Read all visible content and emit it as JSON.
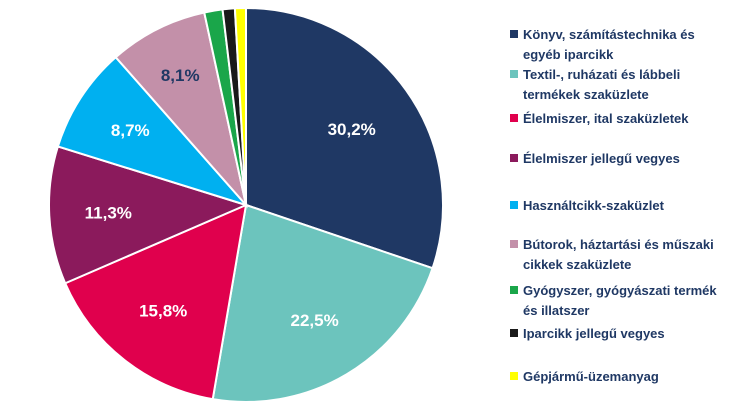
{
  "chart_data": {
    "type": "pie",
    "title": "",
    "series": [
      {
        "name": "Könyv, számítástechnika és egyéb iparcikk",
        "value": 30.2,
        "label": "30,2%",
        "color": "#1f3864",
        "legend_lines": [
          "Könyv, számítástechnika és",
          "egyéb iparcikk"
        ]
      },
      {
        "name": "Textil-, ruházati és lábbeli termékek szaküzlete",
        "value": 22.5,
        "label": "22,5%",
        "color": "#6cc4bd",
        "legend_lines": [
          "Textil-, ruházati és lábbeli",
          "termékek szaküzlete"
        ]
      },
      {
        "name": "Élelmiszer, ital szaküzletek",
        "value": 15.8,
        "label": "15,8%",
        "color": "#e0004d",
        "legend_lines": [
          "Élelmiszer, ital szaküzletek"
        ]
      },
      {
        "name": "Élelmiszer jellegű vegyes",
        "value": 11.3,
        "label": "11,3%",
        "color": "#8b1a5c",
        "legend_lines": [
          "Élelmiszer jellegű vegyes"
        ]
      },
      {
        "name": "Használtcikk-szaküzlet",
        "value": 8.7,
        "label": "8,7%",
        "color": "#00b0f0",
        "legend_lines": [
          "Használtcikk-szaküzlet"
        ]
      },
      {
        "name": "Bútorok, háztartási és műszaki cikkek szaküzlete",
        "value": 8.1,
        "label": "8,1%",
        "color": "#c390a9",
        "legend_lines": [
          "Bútorok, háztartási és műszaki",
          "cikkek szaküzlete"
        ]
      },
      {
        "name": "Gyógyszer, gyógyászati termék és illatszer",
        "value": 1.5,
        "label": "",
        "color": "#1aa64a",
        "legend_lines": [
          "Gyógyszer, gyógyászati termék",
          "és illatszer"
        ]
      },
      {
        "name": "Iparcikk jellegű vegyes",
        "value": 1.0,
        "label": "",
        "color": "#1a1a1a",
        "legend_lines": [
          "Iparcikk jellegű vegyes"
        ]
      },
      {
        "name": "Gépjármű-üzemanyag",
        "value": 0.9,
        "label": "",
        "color": "#ffff00",
        "legend_lines": [
          "Gépjármű-üzemanyag"
        ]
      }
    ],
    "legend_position": "right",
    "label_color_light": "#ffffff",
    "label_color_dark": "#1f3864"
  }
}
